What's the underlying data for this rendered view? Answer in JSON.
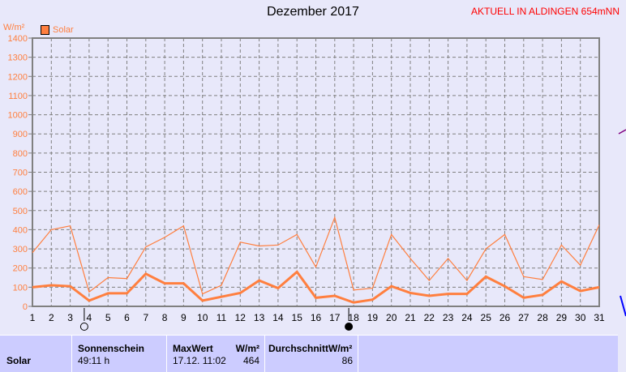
{
  "title": "Dezember 2017",
  "station": "AKTUELL IN ALDINGEN 654mNN",
  "chart_data": {
    "type": "line",
    "ylabel": "W/m²",
    "ylim": [
      0,
      1400
    ],
    "yticks": [
      0,
      100,
      200,
      300,
      400,
      500,
      600,
      700,
      800,
      900,
      1000,
      1100,
      1200,
      1300,
      1400
    ],
    "x": [
      1,
      2,
      3,
      4,
      5,
      6,
      7,
      8,
      9,
      10,
      11,
      12,
      13,
      14,
      15,
      16,
      17,
      18,
      19,
      20,
      21,
      22,
      23,
      24,
      25,
      26,
      27,
      28,
      29,
      30,
      31
    ],
    "grid": true,
    "legend": {
      "label": "Solar",
      "position": "top-left"
    },
    "color": "#ff7f3f",
    "series": [
      {
        "values": [
          280,
          400,
          420,
          75,
          150,
          145,
          310,
          360,
          420,
          65,
          110,
          335,
          315,
          320,
          375,
          205,
          464,
          85,
          95,
          375,
          250,
          135,
          250,
          135,
          300,
          375,
          155,
          140,
          320,
          215,
          425
        ]
      },
      {
        "values": [
          100,
          110,
          105,
          30,
          68,
          68,
          170,
          120,
          120,
          30,
          50,
          70,
          135,
          95,
          180,
          45,
          55,
          20,
          35,
          105,
          70,
          55,
          65,
          65,
          155,
          105,
          45,
          60,
          130,
          80,
          100
        ]
      }
    ],
    "moon_phases": [
      {
        "day": 4,
        "phase": "full-moon"
      },
      {
        "day": 18,
        "phase": "new-moon"
      }
    ]
  },
  "panel": {
    "row_label": "Solar",
    "sunshine_header": "Sonnenschein",
    "sunshine_value": "49:11 h",
    "max_header": "MaxWert",
    "max_unit": "W/m²",
    "max_time": "17.12.  11:02",
    "max_value": "464",
    "avg_header": "DurchschnittW/m²",
    "avg_value": "86"
  }
}
